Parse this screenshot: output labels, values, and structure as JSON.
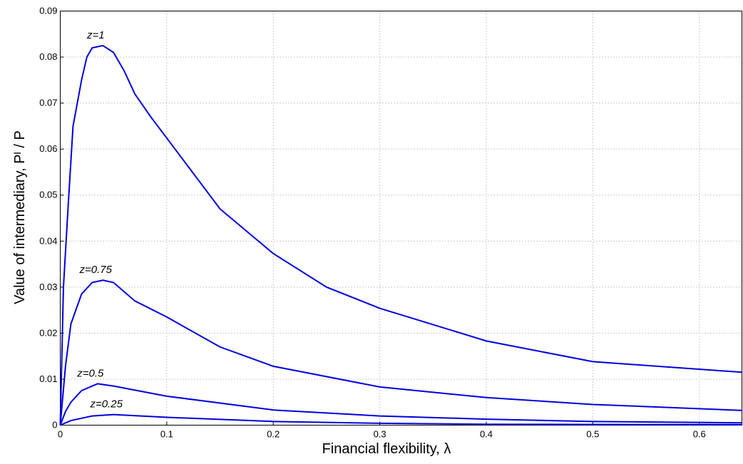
{
  "chart_data": {
    "type": "line",
    "xlabel": "Financial flexibility, λ",
    "ylabel": "Value of intermediary, Pᴵ / P",
    "xlim": [
      0,
      0.64
    ],
    "ylim": [
      0,
      0.09
    ],
    "xticks": [
      0,
      0.1,
      0.2,
      0.3,
      0.4,
      0.5,
      0.6
    ],
    "yticks": [
      0,
      0.01,
      0.02,
      0.03,
      0.04,
      0.05,
      0.06,
      0.07,
      0.08,
      0.09
    ],
    "grid": true,
    "series": [
      {
        "name": "z=1",
        "color": "#0000dd",
        "x": [
          0,
          0.003,
          0.007,
          0.012,
          0.02,
          0.025,
          0.03,
          0.04,
          0.05,
          0.06,
          0.07,
          0.085,
          0.1,
          0.15,
          0.2,
          0.25,
          0.3,
          0.4,
          0.5,
          0.64
        ],
        "values": [
          0,
          0.03,
          0.046,
          0.065,
          0.075,
          0.08,
          0.082,
          0.0825,
          0.081,
          0.077,
          0.072,
          0.067,
          0.0624,
          0.047,
          0.0373,
          0.03,
          0.0254,
          0.0183,
          0.0138,
          0.0115
        ]
      },
      {
        "name": "z=0.75",
        "color": "#0000dd",
        "x": [
          0,
          0.005,
          0.01,
          0.02,
          0.03,
          0.04,
          0.05,
          0.07,
          0.1,
          0.15,
          0.2,
          0.3,
          0.4,
          0.5,
          0.64
        ],
        "values": [
          0,
          0.013,
          0.022,
          0.0285,
          0.031,
          0.0315,
          0.031,
          0.027,
          0.0235,
          0.017,
          0.0128,
          0.0083,
          0.006,
          0.0045,
          0.0032
        ]
      },
      {
        "name": "z=0.5",
        "color": "#0000dd",
        "x": [
          0,
          0.005,
          0.01,
          0.02,
          0.035,
          0.05,
          0.1,
          0.2,
          0.3,
          0.4,
          0.5,
          0.64
        ],
        "values": [
          0,
          0.003,
          0.005,
          0.0075,
          0.009,
          0.0085,
          0.0063,
          0.0033,
          0.002,
          0.0013,
          0.0008,
          0.0005
        ]
      },
      {
        "name": "z=0.25",
        "color": "#0000dd",
        "x": [
          0,
          0.01,
          0.03,
          0.05,
          0.1,
          0.2,
          0.3,
          0.4,
          0.64
        ],
        "values": [
          0,
          0.001,
          0.002,
          0.0023,
          0.0017,
          0.0008,
          0.0004,
          0.0002,
          0.0001
        ]
      }
    ]
  }
}
